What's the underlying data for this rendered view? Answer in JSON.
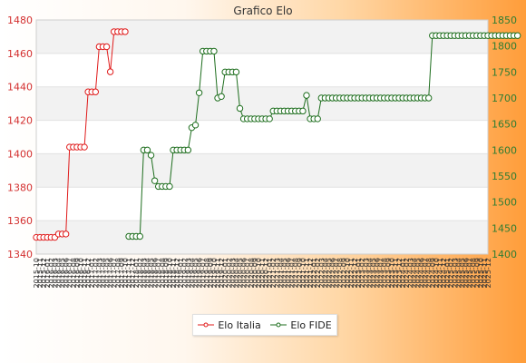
{
  "chart_data": {
    "type": "line",
    "title": "Grafico Elo",
    "x_tick_labels": [
      "2015-10",
      "2015-11",
      "2015-12",
      "2016-01",
      "2016-02",
      "2016-03",
      "2016-04",
      "2016-05",
      "2016-06",
      "2016-07",
      "2016-08",
      "2016-09",
      "2016-10",
      "2016-11",
      "2016-12",
      "2017-01",
      "2017-02",
      "2017-03",
      "2017-04",
      "2017-05",
      "2017-06",
      "2017-07",
      "2017-08",
      "2017-09",
      "2017-10",
      "2017-11",
      "2017-12",
      "2018-01",
      "2018-02",
      "2018-03",
      "2018-04",
      "2018-05",
      "2018-06",
      "2018-07",
      "2018-08",
      "2018-09",
      "2018-10",
      "2018-11",
      "2018-12",
      "2019-01",
      "2019-02",
      "2019-03",
      "2019-04",
      "2019-05",
      "2019-06",
      "2019-07",
      "2019-08",
      "2019-09",
      "2019-10",
      "2019-11",
      "2019-12",
      "2020-01",
      "2020-02",
      "2020-03",
      "2020-04",
      "2020-05",
      "2020-06",
      "2020-07",
      "2020-08",
      "2020-09",
      "2020-10",
      "2020-11",
      "2020-12",
      "2021-01",
      "2021-02",
      "2021-03",
      "2021-04",
      "2021-05",
      "2021-06",
      "2021-07",
      "2021-08",
      "2021-09",
      "2021-10",
      "2021-11",
      "2021-12",
      "2022-01",
      "2022-02",
      "2022-03",
      "2022-04",
      "2022-05",
      "2022-06",
      "2022-07",
      "2022-08",
      "2022-09",
      "2022-10",
      "2022-11",
      "2022-12",
      "2023-01",
      "2023-02",
      "2023-03",
      "2023-04",
      "2023-05",
      "2023-06",
      "2023-07",
      "2023-08",
      "2023-09",
      "2023-10",
      "2023-11",
      "2023-12",
      "2024-01",
      "2024-02",
      "2024-03",
      "2024-04",
      "2024-05",
      "2024-06",
      "2024-07",
      "2024-08",
      "2024-09",
      "2024-10",
      "2024-11",
      "2024-12",
      "2025-01",
      "2025-02",
      "2025-03",
      "2025-04",
      "2025-05",
      "2025-06",
      "2025-07",
      "2025-08",
      "2025-09",
      "2025-10",
      "2025-11",
      "2025-12"
    ],
    "y_left": {
      "min": 1340,
      "max": 1480,
      "ticks": [
        1340,
        1360,
        1380,
        1400,
        1420,
        1440,
        1460,
        1480
      ],
      "color": "#d32f2f"
    },
    "y_right": {
      "min": 1400,
      "max": 1850,
      "ticks": [
        1400,
        1450,
        1500,
        1550,
        1600,
        1650,
        1700,
        1750,
        1800,
        1850
      ],
      "color": "#2e7d32"
    },
    "grid": true,
    "legend_position": "bottom-center",
    "series": [
      {
        "name": "Elo Italia",
        "axis": "left",
        "color": "#e01b1b",
        "start_index": 0,
        "values": [
          1350,
          1350,
          1350,
          1350,
          1350,
          1350,
          1352,
          1352,
          1352,
          1404,
          1404,
          1404,
          1404,
          1404,
          1437,
          1437,
          1437,
          1464,
          1464,
          1464,
          1449,
          1473,
          1473,
          1473,
          1473
        ]
      },
      {
        "name": "Elo FIDE",
        "axis": "right",
        "color": "#1e6e1e",
        "start_index": 25,
        "values": [
          1434,
          1434,
          1434,
          1434,
          1600,
          1600,
          1590,
          1541,
          1530,
          1530,
          1530,
          1530,
          1600,
          1600,
          1600,
          1600,
          1600,
          1643,
          1648,
          1710,
          1790,
          1790,
          1790,
          1790,
          1700,
          1703,
          1750,
          1750,
          1750,
          1750,
          1680,
          1660,
          1660,
          1660,
          1660,
          1660,
          1660,
          1660,
          1660,
          1675,
          1675,
          1675,
          1675,
          1675,
          1675,
          1675,
          1675,
          1675,
          1705,
          1660,
          1660,
          1660,
          1700,
          1700,
          1700,
          1700,
          1700,
          1700,
          1700,
          1700,
          1700,
          1700,
          1700,
          1700,
          1700,
          1700,
          1700,
          1700,
          1700,
          1700,
          1700,
          1700,
          1700,
          1700,
          1700,
          1700,
          1700,
          1700,
          1700,
          1700,
          1700,
          1700,
          1820,
          1820,
          1820,
          1820,
          1820,
          1820,
          1820,
          1820,
          1820,
          1820,
          1820,
          1820,
          1820,
          1820,
          1820,
          1820,
          1820,
          1820,
          1820,
          1820,
          1820,
          1820,
          1820,
          1820
        ]
      }
    ]
  }
}
